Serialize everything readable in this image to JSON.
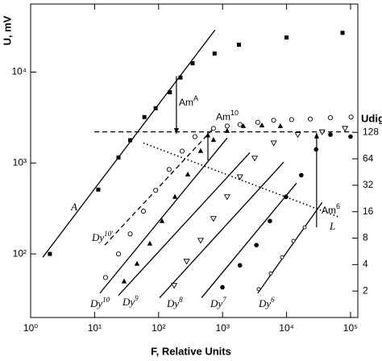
{
  "chart_data": {
    "type": "scatter",
    "xlabel": "F, Relative Units",
    "ylabel": "U, mV",
    "y2label": "Udig",
    "log_x": true,
    "log_y": true,
    "log_y2": true,
    "xlim": [
      1,
      130000
    ],
    "ylim": [
      20,
      56000
    ],
    "y2lim": [
      1,
      3700
    ],
    "xticks": [
      {
        "value": 1,
        "label": "10⁰"
      },
      {
        "value": 10,
        "label": "10¹"
      },
      {
        "value": 100,
        "label": "10²"
      },
      {
        "value": 1000,
        "label": "10³"
      },
      {
        "value": 10000,
        "label": "10⁴"
      },
      {
        "value": 100000,
        "label": "10⁵"
      }
    ],
    "yticks": [
      {
        "value": 100,
        "label": "10²"
      },
      {
        "value": 1000,
        "label": "10³"
      },
      {
        "value": 10000,
        "label": "10⁴"
      }
    ],
    "y2ticks": [
      2,
      4,
      8,
      16,
      32,
      64,
      128
    ],
    "color": "#000000",
    "series": [
      {
        "marker": "square",
        "x": [
          2,
          11.4,
          23.6,
          36,
          60,
          90,
          150,
          220,
          340,
          750,
          1800,
          10000,
          75000
        ],
        "values": [
          100,
          510,
          1150,
          1780,
          3200,
          4000,
          6000,
          8700,
          12500,
          16000,
          20000,
          24000,
          27000
        ]
      },
      {
        "marker": "circle-open",
        "x": [
          14.8,
          23.6,
          36,
          58,
          90,
          146,
          233,
          370,
          720,
          1180,
          1870,
          3550,
          6300,
          12000,
          23500,
          48500,
          102000
        ],
        "values": [
          55,
          100,
          166,
          295,
          500,
          850,
          1350,
          1950,
          2400,
          2550,
          2650,
          2800,
          2950,
          3000,
          3050,
          3150,
          3200
        ]
      },
      {
        "marker": "triangle-filled",
        "x": [
          28.9,
          46,
          73,
          113,
          180,
          286,
          454,
          720,
          1180,
          2110,
          4120,
          8000
        ],
        "values": [
          50,
          78,
          130,
          230,
          425,
          750,
          1360,
          1800,
          2260,
          2550,
          2600,
          2550
        ]
      },
      {
        "marker": "triangle-down-open",
        "x": [
          175,
          275,
          454,
          720,
          1180,
          1870,
          3170,
          6300,
          15000,
          36000,
          82000
        ],
        "values": [
          45,
          83,
          141,
          245,
          425,
          705,
          1130,
          1660,
          2050,
          2200,
          2400
        ]
      },
      {
        "marker": "circle-filled",
        "x": [
          995,
          1870,
          3380,
          5500,
          9800,
          17000,
          29000,
          48500,
          100000
        ],
        "values": [
          43,
          75,
          125,
          230,
          425,
          735,
          1410,
          2050,
          1950
        ]
      },
      {
        "marker": "circle-small-open",
        "x": [
          3660,
          5660,
          8500,
          12800,
          19200
        ],
        "values": [
          41,
          61,
          92,
          139,
          196
        ]
      }
    ],
    "lines": [
      {
        "style": "solid",
        "x": [
          1.55,
          760
        ],
        "y": [
          92,
          29000
        ]
      },
      {
        "style": "solid",
        "x": [
          12.1,
          1180
        ],
        "y": [
          37,
          1880
        ]
      },
      {
        "style": "solid",
        "x": [
          23.6,
          2670
        ],
        "y": [
          35,
          1300
        ]
      },
      {
        "style": "solid",
        "x": [
          104,
          9000
        ],
        "y": [
          33,
          1020
        ]
      },
      {
        "style": "solid",
        "x": [
          470,
          14300
        ],
        "y": [
          33,
          600
        ]
      },
      {
        "style": "solid",
        "x": [
          3550,
          36000
        ],
        "y": [
          37,
          368
        ]
      },
      {
        "style": "dashed",
        "x": [
          14.4,
          720
        ],
        "y": [
          125,
          2400
        ]
      },
      {
        "style": "dashed",
        "x": [
          9.9,
          107000
        ],
        "y": [
          2200,
          2200
        ]
      },
      {
        "style": "dotted",
        "x": [
          58,
          65000
        ],
        "y": [
          1660,
          255
        ]
      }
    ],
    "arrows": [
      {
        "x": 190,
        "y_from": 9000,
        "y_to": 2100
      },
      {
        "x": 590,
        "y_from": 1060,
        "y_to": 2200
      },
      {
        "x": 29500,
        "y_from": 196,
        "y_to": 2150
      }
    ],
    "annotations": [
      {
        "text": "A",
        "sup": ""
      },
      {
        "text": "Am",
        "sup": "A"
      },
      {
        "text": "Am",
        "sup": "10"
      },
      {
        "text": "Am",
        "sup": "6"
      },
      {
        "text": "L",
        "sup": ""
      },
      {
        "text": "Dy",
        "sup": "10'"
      },
      {
        "text": "Dy",
        "sup": "10"
      },
      {
        "text": "Dy",
        "sup": "9"
      },
      {
        "text": "Dy",
        "sup": "8"
      },
      {
        "text": "Dy",
        "sup": "7"
      },
      {
        "text": "Dy",
        "sup": "6"
      }
    ]
  }
}
